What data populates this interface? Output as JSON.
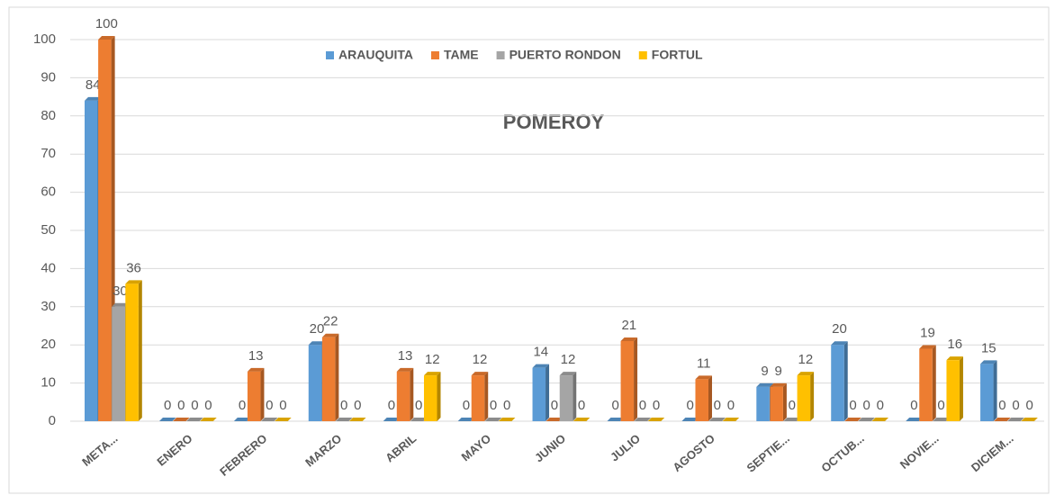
{
  "chart_data": {
    "type": "bar",
    "title": "POMEROY",
    "categories": [
      "META...",
      "ENERO",
      "FEBRERO",
      "MARZO",
      "ABRIL",
      "MAYO",
      "JUNIO",
      "JULIO",
      "AGOSTO",
      "SEPTIE...",
      "OCTUB...",
      "NOVIE...",
      "DICIEM..."
    ],
    "series": [
      {
        "name": "ARAUQUITA",
        "color": "#5b9bd5",
        "values": [
          84,
          0,
          0,
          20,
          0,
          0,
          14,
          0,
          0,
          9,
          20,
          0,
          15
        ]
      },
      {
        "name": "TAME",
        "color": "#ed7d31",
        "values": [
          100,
          0,
          13,
          22,
          13,
          12,
          0,
          21,
          11,
          9,
          0,
          19,
          0
        ]
      },
      {
        "name": "PUERTO RONDON",
        "color": "#a5a5a5",
        "values": [
          30,
          0,
          0,
          0,
          0,
          0,
          12,
          0,
          0,
          0,
          0,
          0,
          0
        ]
      },
      {
        "name": "FORTUL",
        "color": "#ffc000",
        "values": [
          36,
          0,
          0,
          0,
          12,
          0,
          0,
          0,
          0,
          12,
          0,
          16,
          0
        ]
      }
    ],
    "ylim": [
      0,
      100
    ],
    "yticks": [
      0,
      10,
      20,
      30,
      40,
      50,
      60,
      70,
      80,
      90,
      100
    ],
    "grid": true,
    "legend": "top"
  }
}
